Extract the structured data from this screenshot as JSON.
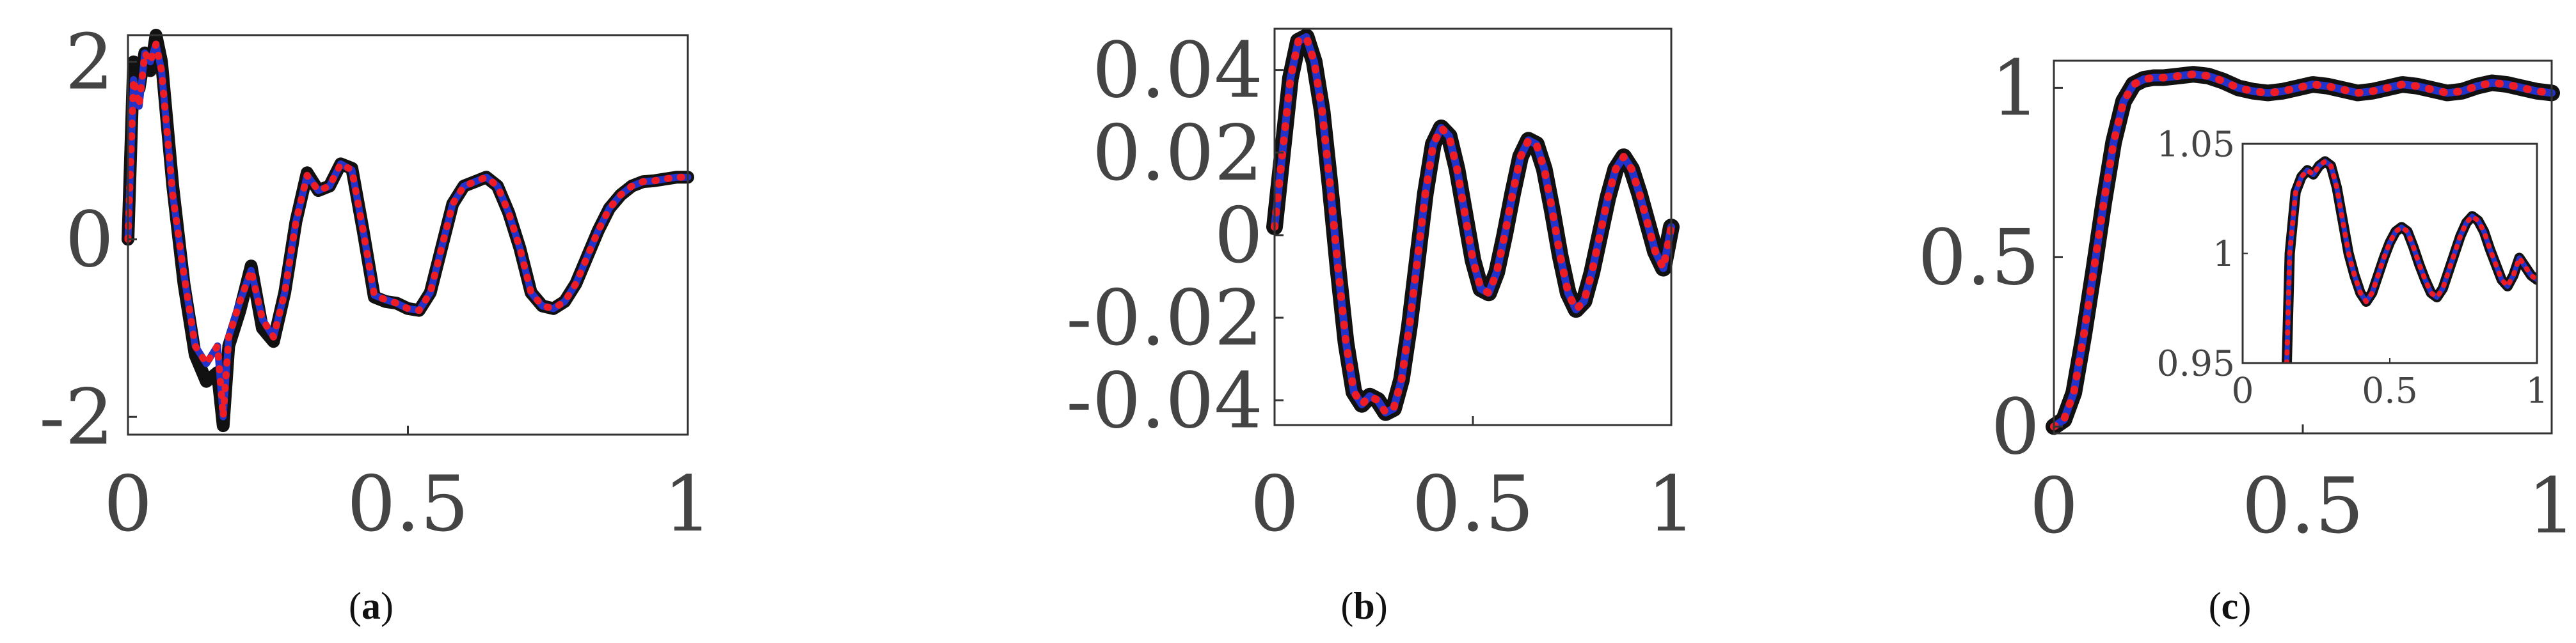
{
  "colors": {
    "thick_curve": "#111111",
    "blue_curve": "#2233cc",
    "red_dotted": "#ee1c25",
    "axis": "#333333",
    "tick_text": "#444444"
  },
  "captions": [
    {
      "open": "(",
      "letter": "a",
      "close": ")"
    },
    {
      "open": "(",
      "letter": "b",
      "close": ")"
    },
    {
      "open": "(",
      "letter": "c",
      "close": ")"
    }
  ],
  "chart_data": [
    {
      "type": "line",
      "panel": "a",
      "xlim": [
        0,
        1
      ],
      "ylim": [
        -2.2,
        2.3
      ],
      "xticks": [
        0,
        0.5,
        1
      ],
      "xtick_labels": [
        "0",
        "0.5",
        "1"
      ],
      "yticks": [
        -2,
        0,
        2
      ],
      "ytick_labels": [
        "-2",
        "0",
        "2"
      ],
      "grid": false,
      "series": [
        {
          "style": "thick-black",
          "x": [
            0,
            0.01,
            0.02,
            0.03,
            0.04,
            0.05,
            0.06,
            0.08,
            0.1,
            0.12,
            0.14,
            0.16,
            0.17,
            0.18,
            0.2,
            0.22,
            0.24,
            0.26,
            0.28,
            0.3,
            0.32,
            0.34,
            0.36,
            0.38,
            0.4,
            0.42,
            0.44,
            0.46,
            0.48,
            0.5,
            0.52,
            0.54,
            0.56,
            0.58,
            0.6,
            0.62,
            0.64,
            0.66,
            0.68,
            0.7,
            0.72,
            0.74,
            0.76,
            0.78,
            0.8,
            0.82,
            0.84,
            0.86,
            0.88,
            0.9,
            0.92,
            0.94,
            0.96,
            0.98,
            1.0
          ],
          "y": [
            0,
            2.0,
            1.7,
            2.1,
            1.9,
            2.3,
            2.0,
            0.6,
            -0.5,
            -1.3,
            -1.6,
            -1.5,
            -2.1,
            -1.2,
            -0.8,
            -0.3,
            -1.0,
            -1.15,
            -0.6,
            0.2,
            0.75,
            0.55,
            0.6,
            0.85,
            0.8,
            0.1,
            -0.65,
            -0.7,
            -0.72,
            -0.78,
            -0.8,
            -0.6,
            -0.1,
            0.4,
            0.6,
            0.65,
            0.7,
            0.6,
            0.3,
            -0.1,
            -0.6,
            -0.75,
            -0.78,
            -0.7,
            -0.5,
            -0.2,
            0.1,
            0.35,
            0.5,
            0.6,
            0.65,
            0.66,
            0.68,
            0.7,
            0.7
          ]
        },
        {
          "style": "dotted-red-on-blue",
          "x": [
            0,
            0.01,
            0.02,
            0.03,
            0.04,
            0.05,
            0.06,
            0.08,
            0.1,
            0.12,
            0.14,
            0.16,
            0.17,
            0.18,
            0.2,
            0.22,
            0.24,
            0.26,
            0.28,
            0.3,
            0.32,
            0.34,
            0.36,
            0.38,
            0.4,
            0.42,
            0.44,
            0.46,
            0.48,
            0.5,
            0.52,
            0.54,
            0.56,
            0.58,
            0.6,
            0.62,
            0.64,
            0.66,
            0.68,
            0.7,
            0.72,
            0.74,
            0.76,
            0.78,
            0.8,
            0.82,
            0.84,
            0.86,
            0.88,
            0.9,
            0.92,
            0.94,
            0.96,
            0.98,
            1.0
          ],
          "y": [
            0,
            1.8,
            1.5,
            2.1,
            2.0,
            2.2,
            1.9,
            0.5,
            -0.4,
            -1.2,
            -1.4,
            -1.2,
            -2.0,
            -1.1,
            -0.7,
            -0.35,
            -0.9,
            -1.1,
            -0.6,
            0.2,
            0.72,
            0.55,
            0.6,
            0.85,
            0.78,
            0.1,
            -0.63,
            -0.68,
            -0.72,
            -0.78,
            -0.8,
            -0.6,
            -0.1,
            0.4,
            0.6,
            0.65,
            0.7,
            0.6,
            0.3,
            -0.1,
            -0.6,
            -0.75,
            -0.78,
            -0.7,
            -0.5,
            -0.2,
            0.1,
            0.35,
            0.5,
            0.6,
            0.65,
            0.66,
            0.68,
            0.7,
            0.7
          ]
        }
      ]
    },
    {
      "type": "line",
      "panel": "b",
      "xlim": [
        0,
        1
      ],
      "ylim": [
        -0.046,
        0.05
      ],
      "xticks": [
        0,
        0.5,
        1
      ],
      "xtick_labels": [
        "0",
        "0.5",
        "1"
      ],
      "yticks": [
        -0.04,
        -0.02,
        0,
        0.02,
        0.04
      ],
      "ytick_labels": [
        "-0.04",
        "-0.02",
        "0",
        "0.02",
        "0.04"
      ],
      "grid": false,
      "series": [
        {
          "style": "thick-black-with-dotted-red-on-blue",
          "x": [
            0,
            0.02,
            0.04,
            0.06,
            0.08,
            0.1,
            0.12,
            0.14,
            0.16,
            0.18,
            0.2,
            0.22,
            0.24,
            0.26,
            0.28,
            0.3,
            0.32,
            0.34,
            0.36,
            0.38,
            0.4,
            0.42,
            0.44,
            0.46,
            0.48,
            0.5,
            0.52,
            0.54,
            0.56,
            0.58,
            0.6,
            0.62,
            0.64,
            0.66,
            0.68,
            0.7,
            0.72,
            0.74,
            0.76,
            0.78,
            0.8,
            0.82,
            0.84,
            0.86,
            0.88,
            0.9,
            0.92,
            0.94,
            0.96,
            0.98,
            1.0
          ],
          "y": [
            0.002,
            0.02,
            0.038,
            0.047,
            0.048,
            0.042,
            0.03,
            0.012,
            -0.008,
            -0.026,
            -0.038,
            -0.041,
            -0.039,
            -0.04,
            -0.043,
            -0.042,
            -0.035,
            -0.022,
            -0.006,
            0.01,
            0.022,
            0.026,
            0.024,
            0.016,
            0.005,
            -0.006,
            -0.013,
            -0.014,
            -0.009,
            0.0,
            0.01,
            0.019,
            0.023,
            0.022,
            0.016,
            0.006,
            -0.005,
            -0.014,
            -0.018,
            -0.016,
            -0.009,
            0.0,
            0.009,
            0.016,
            0.019,
            0.016,
            0.01,
            0.003,
            -0.004,
            -0.008,
            0.002
          ]
        }
      ]
    },
    {
      "type": "line",
      "panel": "c",
      "xlim": [
        0,
        1
      ],
      "ylim": [
        -0.02,
        1.08
      ],
      "xticks": [
        0,
        0.5,
        1
      ],
      "xtick_labels": [
        "0",
        "0.5",
        "1"
      ],
      "yticks": [
        0,
        0.5,
        1
      ],
      "ytick_labels": [
        "0",
        "0.5",
        "1"
      ],
      "grid": false,
      "series": [
        {
          "style": "thick-black-with-dotted-red-on-blue",
          "x": [
            0,
            0.02,
            0.04,
            0.06,
            0.08,
            0.1,
            0.12,
            0.14,
            0.16,
            0.18,
            0.2,
            0.22,
            0.25,
            0.28,
            0.31,
            0.34,
            0.37,
            0.4,
            0.43,
            0.46,
            0.49,
            0.52,
            0.55,
            0.58,
            0.61,
            0.64,
            0.67,
            0.7,
            0.73,
            0.76,
            0.79,
            0.82,
            0.85,
            0.88,
            0.91,
            0.94,
            0.97,
            1.0
          ],
          "y": [
            0.0,
            0.02,
            0.1,
            0.27,
            0.46,
            0.66,
            0.84,
            0.96,
            1.01,
            1.025,
            1.03,
            1.03,
            1.035,
            1.04,
            1.035,
            1.02,
            1.0,
            0.99,
            0.985,
            0.99,
            1.0,
            1.01,
            1.005,
            0.995,
            0.985,
            0.99,
            1.0,
            1.01,
            1.005,
            0.995,
            0.985,
            0.99,
            1.005,
            1.015,
            1.01,
            1.0,
            0.99,
            0.985
          ]
        }
      ],
      "inset": {
        "xlim": [
          0,
          1
        ],
        "ylim": [
          0.95,
          1.05
        ],
        "xticks": [
          0,
          0.5,
          1
        ],
        "xtick_labels": [
          "0",
          "0.5",
          "1"
        ],
        "yticks": [
          0.95,
          1,
          1.05
        ],
        "ytick_labels": [
          "0.95",
          "1",
          "1.05"
        ],
        "x": [
          0.15,
          0.16,
          0.18,
          0.2,
          0.22,
          0.24,
          0.26,
          0.28,
          0.3,
          0.32,
          0.34,
          0.36,
          0.38,
          0.4,
          0.42,
          0.44,
          0.46,
          0.48,
          0.5,
          0.52,
          0.54,
          0.56,
          0.58,
          0.6,
          0.62,
          0.64,
          0.66,
          0.68,
          0.7,
          0.72,
          0.74,
          0.76,
          0.78,
          0.8,
          0.82,
          0.84,
          0.86,
          0.88,
          0.9,
          0.92,
          0.94,
          0.96,
          0.98,
          1.0
        ],
        "y": [
          0.95,
          1.0,
          1.028,
          1.035,
          1.038,
          1.036,
          1.04,
          1.042,
          1.04,
          1.03,
          1.015,
          1.0,
          0.99,
          0.982,
          0.978,
          0.982,
          0.99,
          0.998,
          1.005,
          1.01,
          1.012,
          1.01,
          1.003,
          0.995,
          0.988,
          0.982,
          0.98,
          0.984,
          0.992,
          1.0,
          1.008,
          1.014,
          1.017,
          1.015,
          1.01,
          1.002,
          0.995,
          0.988,
          0.985,
          0.99,
          0.998,
          0.994,
          0.99,
          0.988
        ]
      }
    }
  ]
}
